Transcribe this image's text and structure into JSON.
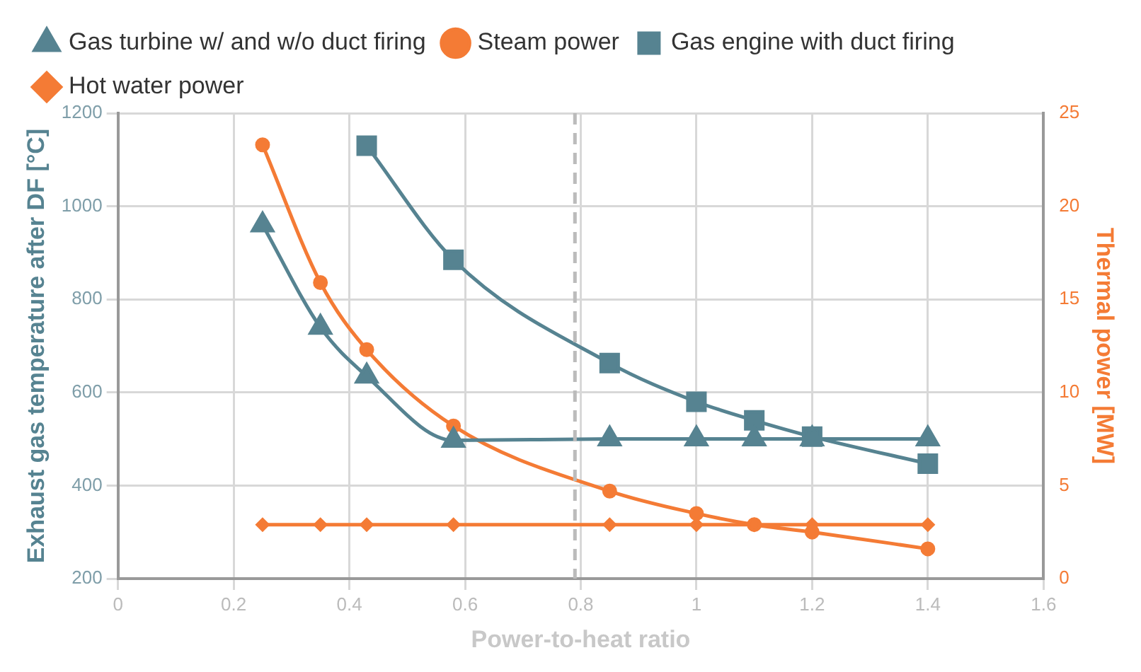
{
  "chart_data": {
    "type": "line",
    "xlabel": "Power-to-heat ratio",
    "ylabel": "Exhaust gas temperature after DF [°C]",
    "y2label": "Thermal power [MW]",
    "xlim": [
      0,
      1.6
    ],
    "xticks": [
      0,
      0.2,
      0.4,
      0.6,
      0.8,
      1,
      1.2,
      1.4,
      1.6
    ],
    "ylim": [
      200,
      1200
    ],
    "yticks": [
      200,
      400,
      600,
      800,
      1000,
      1200
    ],
    "y2lim": [
      0,
      25
    ],
    "y2ticks": [
      0,
      5,
      10,
      15,
      20,
      25
    ],
    "grid": true,
    "legend": "top",
    "series": [
      {
        "name": "Gas turbine w/ and w/o duct firing",
        "color": "#568391",
        "marker": "triangle",
        "x": [
          0.25,
          0.35,
          0.43,
          0.58,
          0.85,
          1.0,
          1.1,
          1.2,
          1.4
        ],
        "values": [
          960,
          740,
          635,
          497,
          500,
          500,
          500,
          500,
          500
        ]
      },
      {
        "name": "Steam power",
        "color": "#f47b35",
        "marker": "circle",
        "axis": "y2",
        "x": [
          0.25,
          0.35,
          0.43,
          0.58,
          0.85,
          1.0,
          1.1,
          1.2,
          1.4
        ],
        "values": [
          23.3,
          15.9,
          12.3,
          8.2,
          4.7,
          3.5,
          2.9,
          2.5,
          1.6
        ]
      },
      {
        "name": "Gas engine with duct firing",
        "color": "#568391",
        "marker": "square",
        "x": [
          0.43,
          0.58,
          0.85,
          1.0,
          1.1,
          1.2,
          1.4
        ],
        "values": [
          1130,
          885,
          663,
          580,
          540,
          505,
          447
        ]
      },
      {
        "name": "Hot water power",
        "color": "#f47b35",
        "marker": "diamond",
        "axis": "y2",
        "x": [
          0.25,
          0.35,
          0.43,
          0.58,
          0.85,
          1.0,
          1.1,
          1.2,
          1.4
        ],
        "values": [
          2.9,
          2.9,
          2.9,
          2.9,
          2.9,
          2.9,
          2.9,
          2.9,
          2.9
        ]
      }
    ],
    "ref_lines": [
      {
        "axis": "x",
        "value": 0.79,
        "color": "#bbbbbb",
        "line_style": "dashed"
      }
    ]
  }
}
